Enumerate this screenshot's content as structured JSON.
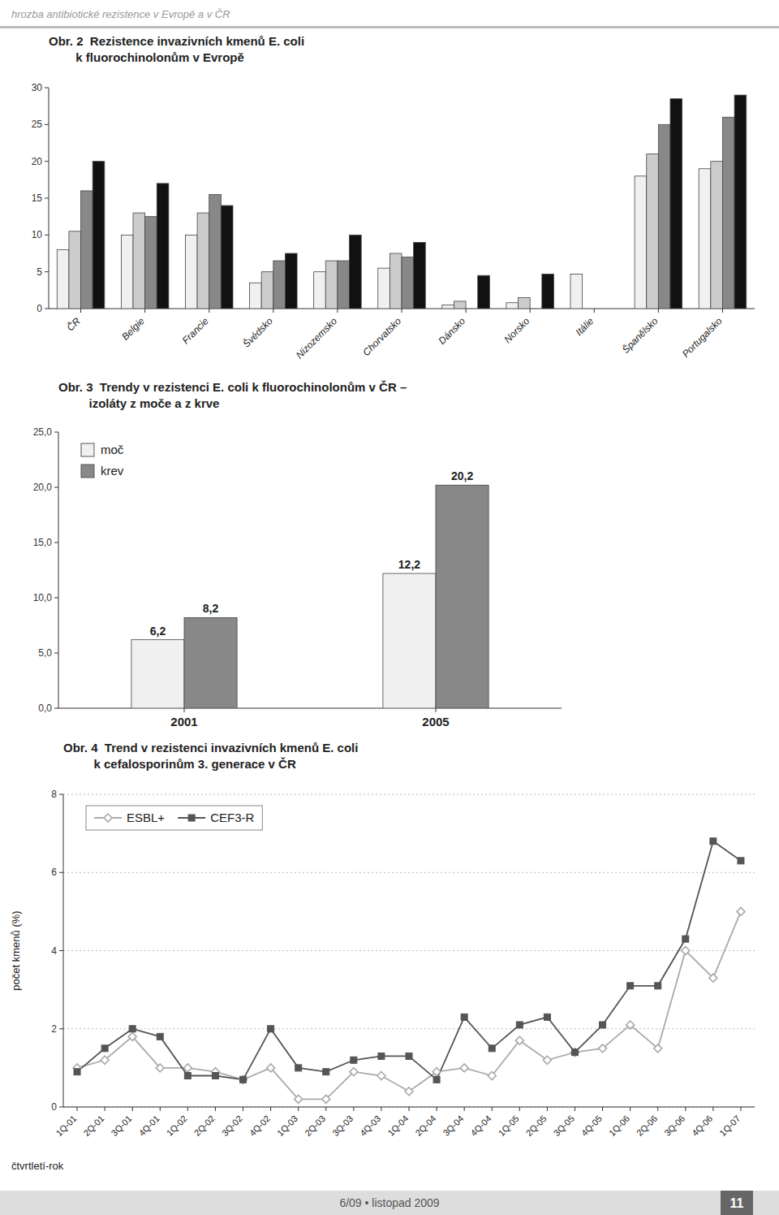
{
  "header": "hrozba antibiotické rezistence v Evropě a v ČR",
  "footer": "6/09  •  listopad 2009",
  "page_number": "11",
  "chart_data": [
    {
      "type": "bar",
      "title": "Obr. 2  Rezistence invazivních kmenů E. coli\n        k fluorochinolonům v Evropě",
      "categories": [
        "ČR",
        "Belgie",
        "Francie",
        "Švédsko",
        "Nizozemsko",
        "Chorvatsko",
        "Dánsko",
        "Norsko",
        "Itálie",
        "Španělsko",
        "Portugalsko"
      ],
      "series": [
        {
          "color": "#f0f0f0",
          "values": [
            8.0,
            10.0,
            10.0,
            3.5,
            5.0,
            5.5,
            0.5,
            0.8,
            4.7,
            18.0,
            19.0
          ]
        },
        {
          "color": "#cccccc",
          "values": [
            10.5,
            13.0,
            13.0,
            5.0,
            6.5,
            7.5,
            1.0,
            1.5,
            0.0,
            21.0,
            20.0
          ]
        },
        {
          "color": "#888888",
          "values": [
            16.0,
            12.5,
            15.5,
            6.5,
            6.5,
            7.0,
            0.0,
            0.0,
            0.0,
            25.0,
            26.0
          ]
        },
        {
          "color": "#111111",
          "values": [
            20.0,
            17.0,
            14.0,
            7.5,
            10.0,
            9.0,
            4.5,
            4.7,
            0.0,
            28.5,
            29.0
          ]
        }
      ],
      "ylim": [
        0,
        30
      ],
      "yticks": [
        0,
        5,
        10,
        15,
        20,
        25,
        30
      ],
      "grid": false
    },
    {
      "type": "bar",
      "title": "Obr. 3  Trendy v rezistenci E. coli k fluorochinolonům v ČR –\n         izoláty z moče a z krve",
      "categories": [
        "2001",
        "2005"
      ],
      "series": [
        {
          "name": "moč",
          "color": "#f0f0f0",
          "values": [
            6.2,
            12.2
          ],
          "value_labels": [
            "6,2",
            "12,2"
          ]
        },
        {
          "name": "krev",
          "color": "#888888",
          "values": [
            8.2,
            20.2
          ],
          "value_labels": [
            "8,2",
            "20,2"
          ]
        }
      ],
      "ylim": [
        0,
        25
      ],
      "yticks": [
        {
          "value": 0,
          "label": "0,0"
        },
        {
          "value": 5,
          "label": "5,0"
        },
        {
          "value": 10,
          "label": "10,0"
        },
        {
          "value": 15,
          "label": "15,0"
        },
        {
          "value": 20,
          "label": "20,0"
        },
        {
          "value": 25,
          "label": "25,0"
        }
      ],
      "grid": false,
      "legend": "upper left",
      "data_labels": true
    },
    {
      "type": "line",
      "title": "Obr. 4  Trend v rezistenci invazivních kmenů E. coli\n         k cefalosporinům 3. generace v ČR",
      "xlabel": "čtvrtletí-rok",
      "ylabel": "počet kmenů (%)",
      "categories": [
        "1Q-01",
        "2Q-01",
        "3Q-01",
        "4Q-01",
        "1Q-02",
        "2Q-02",
        "3Q-02",
        "4Q-02",
        "1Q-03",
        "2Q-03",
        "3Q-03",
        "4Q-03",
        "1Q-04",
        "2Q-04",
        "3Q-04",
        "4Q-04",
        "1Q-05",
        "2Q-05",
        "3Q-05",
        "4Q-05",
        "1Q-06",
        "2Q-06",
        "3Q-06",
        "4Q-06",
        "1Q-07"
      ],
      "series": [
        {
          "name": "ESBL+",
          "color": "#aaaaaa",
          "marker": "diamond",
          "values": [
            1.0,
            1.2,
            1.8,
            1.0,
            1.0,
            0.9,
            0.7,
            1.0,
            0.2,
            0.2,
            0.9,
            0.8,
            0.4,
            0.9,
            1.0,
            0.8,
            1.7,
            1.2,
            1.4,
            1.5,
            2.1,
            1.5,
            4.0,
            3.3,
            5.0
          ]
        },
        {
          "name": "CEF3-R",
          "color": "#555555",
          "marker": "square",
          "values": [
            0.9,
            1.5,
            2.0,
            1.8,
            0.8,
            0.8,
            0.7,
            2.0,
            1.0,
            0.9,
            1.2,
            1.3,
            1.3,
            0.7,
            2.3,
            1.5,
            2.1,
            2.3,
            1.4,
            2.1,
            3.1,
            3.1,
            4.3,
            6.8,
            6.3
          ]
        }
      ],
      "ylim": [
        0,
        8
      ],
      "yticks": [
        0,
        2,
        4,
        6,
        8
      ],
      "grid": true,
      "legend": "upper left"
    }
  ]
}
